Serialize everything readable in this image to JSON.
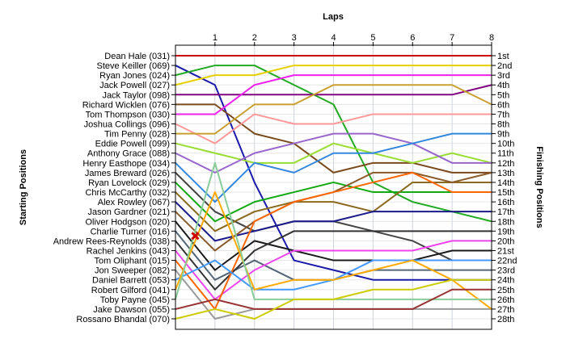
{
  "chart_data": {
    "type": "line",
    "x_title": "Laps",
    "left_axis_title": "Starting Positions",
    "right_axis_title": "Finishing Positions",
    "laps": [
      1,
      2,
      3,
      4,
      5,
      6,
      7,
      8
    ],
    "start_labels": [
      "Dean Hale (031)",
      "Steve Keiller (069)",
      "Ryan Jones (024)",
      "Jack Powell (027)",
      "Jack Taylor (098)",
      "Richard Wicklen (076)",
      "Tom Thompson (030)",
      "Joshua Collings (096)",
      "Tim Penny (028)",
      "Eddie Powell (099)",
      "Anthony Grace (088)",
      "Henry Easthope (034)",
      "James Breward (026)",
      "Ryan Lovelock (029)",
      "Chris McCarthy (032)",
      "Alex Rowley (067)",
      "Jason Gardner (021)",
      "Oliver Hodgson (020)",
      "Charlie Turner (016)",
      "Andrew Rees-Reynolds (038)",
      "Rachel Jenkins (043)",
      "Tom Oliphant (015)",
      "Jon Sweeper (082)",
      "Daniel Barrett (053)",
      "Robert Gilford (041)",
      "Toby Payne (045)",
      "Jake Dawson (055)",
      "Rossano Bhandal (070)"
    ],
    "finish_labels": [
      "1st",
      "2nd",
      "3rd",
      "4th",
      "5th",
      "6th",
      "7th",
      "8th",
      "9th",
      "10th",
      "11th",
      "12th",
      "13th",
      "14th",
      "15th",
      "16th",
      "17th",
      "18th",
      "19th",
      "20th",
      "21st",
      "22nd",
      "23rd",
      "24th",
      "25th",
      "26th",
      "27th",
      "28th"
    ],
    "series": [
      {
        "start": 1,
        "positions": [
          1,
          1,
          1,
          1,
          1,
          1,
          1,
          1
        ],
        "color": "#cc0000"
      },
      {
        "start": 2,
        "positions": [
          4,
          14,
          22,
          23,
          24,
          24,
          24,
          24
        ],
        "color": "#1a1aaa"
      },
      {
        "start": 3,
        "positions": [
          2,
          2,
          4,
          6,
          14,
          16,
          17,
          18
        ],
        "color": "#22aa22"
      },
      {
        "start": 4,
        "positions": [
          3,
          3,
          2,
          2,
          2,
          2,
          2,
          2
        ],
        "color": "#e6d000"
      },
      {
        "start": 5,
        "positions": [
          5,
          5,
          5,
          5,
          5,
          5,
          5,
          4
        ],
        "color": "#800080"
      },
      {
        "start": 6,
        "positions": [
          6,
          9,
          10,
          13,
          12,
          12,
          13,
          13
        ],
        "color": "#7a4a1c"
      },
      {
        "start": 7,
        "positions": [
          7,
          4,
          3,
          3,
          3,
          3,
          3,
          3
        ],
        "color": "#ee22ee"
      },
      {
        "start": 8,
        "positions": [
          10,
          7,
          8,
          8,
          7,
          7,
          7,
          7
        ],
        "color": "#ff9999"
      },
      {
        "start": 9,
        "positions": [
          9,
          6,
          6,
          4,
          4,
          4,
          4,
          6
        ],
        "color": "#c8a030"
      },
      {
        "start": 10,
        "positions": [
          11,
          12,
          12,
          10,
          11,
          12,
          11,
          12
        ],
        "color": "#99dd33"
      },
      {
        "start": 11,
        "positions": [
          13,
          11,
          10,
          9,
          9,
          10,
          12,
          12
        ],
        "color": "#9966cc"
      },
      {
        "start": 12,
        "positions": [
          16,
          12,
          13,
          11,
          11,
          10,
          9,
          9
        ],
        "color": "#3388dd"
      },
      {
        "start": 13,
        "positions": [
          17,
          19,
          18,
          18,
          19,
          20,
          22,
          22
        ],
        "color": "#444444"
      },
      {
        "start": 14,
        "positions": [
          18,
          16,
          15,
          14,
          15,
          15,
          15,
          15
        ],
        "color": "#11aa11"
      },
      {
        "start": 15,
        "positions": [
          19,
          17,
          16,
          16,
          17,
          14,
          14,
          14
        ],
        "color": "#8a6a1e"
      },
      {
        "start": 16,
        "positions": [
          20,
          19,
          18,
          18,
          17,
          17,
          17,
          17
        ],
        "color": "#1a1a8a"
      },
      {
        "start": 17,
        "positions": [
          21,
          18,
          16,
          15,
          13,
          13,
          14,
          13
        ],
        "color": "#8b5a2b"
      },
      {
        "start": 18,
        "positions": [
          23,
          20,
          21,
          22,
          22,
          22,
          21,
          21
        ],
        "color": "#1a1a1a"
      },
      {
        "start": 19,
        "positions": [
          24,
          22,
          24,
          24,
          23,
          23,
          23,
          23
        ],
        "color": "#556677"
      },
      {
        "start": 20,
        "positions": [
          25,
          21,
          19,
          19,
          19,
          19,
          19,
          19
        ],
        "color": "#333333"
      },
      {
        "start": 21,
        "positions": [
          26,
          23,
          21,
          21,
          21,
          21,
          20,
          20
        ],
        "color": "#ee44ee"
      },
      {
        "start": 22,
        "positions": [
          27,
          18,
          16,
          15,
          14,
          13,
          15,
          15
        ],
        "color": "#ff6600"
      },
      {
        "start": 23,
        "positions": [
          28,
          27,
          27,
          27,
          27,
          27,
          27,
          27
        ],
        "color": "#999999"
      },
      {
        "start": 24,
        "positions": [
          22,
          25,
          25,
          24,
          22,
          22,
          22,
          22
        ],
        "color": "#4499ff"
      },
      {
        "start": 25,
        "positions": [
          15,
          25,
          24,
          24,
          23,
          22,
          24,
          27
        ],
        "color": "#ffaa00"
      },
      {
        "start": 26,
        "positions": [
          12,
          26,
          26,
          26,
          26,
          26,
          26,
          26
        ],
        "color": "#88cc99"
      },
      {
        "start": 27,
        "positions": [
          26,
          27,
          27,
          27,
          27,
          27,
          25,
          25
        ],
        "color": "#993333"
      },
      {
        "start": 28,
        "positions": [
          27,
          28,
          26,
          26,
          25,
          25,
          24,
          24
        ],
        "color": "#cccc00"
      }
    ],
    "x_range": [
      0,
      8
    ],
    "y_range": [
      1,
      28
    ],
    "grid": true,
    "marker": {
      "lap": 0.5,
      "position": 19.5,
      "color": "#cc0000"
    }
  }
}
